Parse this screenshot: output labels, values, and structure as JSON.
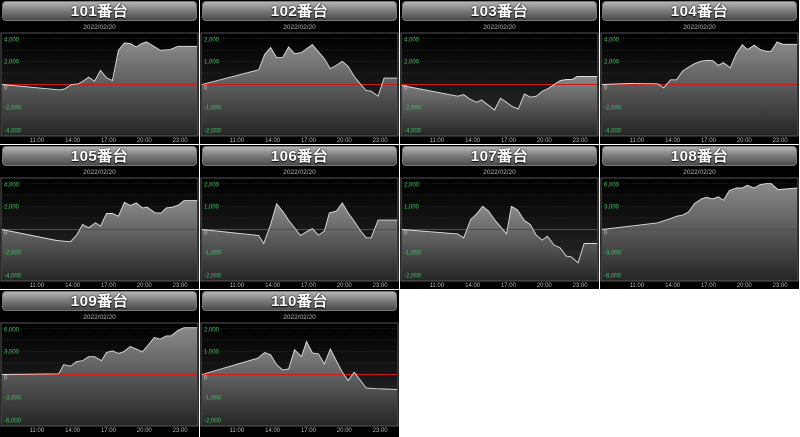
{
  "colors": {
    "zero_line": "#cc1a1a",
    "series_line": "#dddddd",
    "fill_top": "#8a8a8a",
    "fill_bottom": "#262626",
    "y_labels": "#46c46a",
    "background": "#000000"
  },
  "x_ticks": [
    "11:00",
    "14:00",
    "17:00",
    "20:00",
    "23:00"
  ],
  "chart_data": [
    {
      "type": "area",
      "title": "101番台",
      "subtitle": "2022/02/20",
      "xlim": [
        "08:05",
        "24:25"
      ],
      "ylim": [
        -4400,
        4400
      ],
      "y_ticks": [
        4000,
        2000,
        0,
        -2000,
        -4000
      ],
      "y_tick_labels": [
        "4,000",
        "2,000",
        "0",
        "-2,000",
        "-4,000"
      ],
      "grid": true,
      "x": [
        "08:05",
        "12:55",
        "13:20",
        "13:55",
        "14:30",
        "14:50",
        "15:20",
        "15:50",
        "16:20",
        "16:50",
        "17:20",
        "17:50",
        "18:20",
        "18:50",
        "19:20",
        "19:45",
        "20:10",
        "20:40",
        "21:20",
        "22:10",
        "22:50",
        "24:25"
      ],
      "values": [
        0,
        -470,
        -380,
        0,
        60,
        260,
        640,
        290,
        1230,
        580,
        350,
        2980,
        3620,
        3560,
        3270,
        3560,
        3710,
        3420,
        2980,
        3040,
        3330,
        3330
      ]
    },
    {
      "type": "area",
      "title": "102番台",
      "subtitle": "2022/02/20",
      "xlim": [
        "08:05",
        "24:25"
      ],
      "ylim": [
        -2200,
        2200
      ],
      "y_ticks": [
        2000,
        1000,
        0,
        -1000,
        -2000
      ],
      "y_tick_labels": [
        "2,000",
        "1,000",
        "0",
        "-1,000",
        "-2,000"
      ],
      "grid": true,
      "x": [
        "08:05",
        "12:50",
        "13:20",
        "13:50",
        "14:20",
        "14:50",
        "15:20",
        "15:50",
        "16:25",
        "16:50",
        "17:20",
        "18:20",
        "18:50",
        "19:20",
        "19:50",
        "20:20",
        "20:50",
        "21:20",
        "21:50",
        "22:15",
        "22:50",
        "23:20",
        "24:25"
      ],
      "values": [
        0,
        640,
        1310,
        1610,
        1170,
        1170,
        1640,
        1340,
        1390,
        1560,
        1740,
        1120,
        690,
        830,
        1010,
        790,
        350,
        30,
        -260,
        -290,
        -510,
        280,
        280
      ]
    },
    {
      "type": "area",
      "title": "103番台",
      "subtitle": "2022/02/20",
      "xlim": [
        "08:05",
        "24:25"
      ],
      "ylim": [
        -4400,
        4400
      ],
      "y_ticks": [
        4000,
        2000,
        0,
        -2000,
        -4000
      ],
      "y_tick_labels": [
        "4,000",
        "2,000",
        "0",
        "-2,000",
        "-4,000"
      ],
      "grid": true,
      "x": [
        "08:05",
        "12:45",
        "13:15",
        "13:45",
        "14:20",
        "14:45",
        "15:15",
        "15:50",
        "16:20",
        "16:50",
        "17:20",
        "17:50",
        "18:20",
        "18:50",
        "19:20",
        "19:50",
        "20:20",
        "20:50",
        "21:20",
        "21:50",
        "22:20",
        "22:45",
        "24:25"
      ],
      "values": [
        -90,
        -1020,
        -880,
        -1260,
        -1550,
        -1340,
        -1750,
        -2220,
        -1200,
        -1550,
        -1930,
        -2130,
        -820,
        -1110,
        -1020,
        -580,
        -350,
        0,
        350,
        440,
        440,
        700,
        700
      ]
    },
    {
      "type": "area",
      "title": "104番台",
      "subtitle": "2022/02/20",
      "xlim": [
        "08:05",
        "24:25"
      ],
      "ylim": [
        -4400,
        4400
      ],
      "y_ticks": [
        4000,
        2000,
        0,
        -2000,
        -4000
      ],
      "y_tick_labels": [
        "4,000",
        "2,000",
        "0",
        "-2,000",
        "-4,000"
      ],
      "grid": true,
      "x": [
        "08:05",
        "10:25",
        "12:45",
        "13:15",
        "13:50",
        "14:20",
        "14:50",
        "15:20",
        "15:50",
        "16:25",
        "16:50",
        "17:20",
        "17:50",
        "18:15",
        "18:50",
        "19:20",
        "19:50",
        "20:15",
        "20:50",
        "21:20",
        "21:50",
        "22:15",
        "22:45",
        "23:15",
        "24:25"
      ],
      "values": [
        0,
        90,
        60,
        -290,
        410,
        410,
        1170,
        1520,
        1810,
        2040,
        2100,
        2100,
        1660,
        1900,
        1460,
        2690,
        3470,
        3040,
        3420,
        3040,
        2890,
        2890,
        3710,
        3500,
        3500
      ]
    },
    {
      "type": "area",
      "title": "105番台",
      "subtitle": "2022/02/20",
      "xlim": [
        "08:05",
        "24:25"
      ],
      "ylim": [
        -4400,
        4400
      ],
      "y_ticks": [
        4000,
        2000,
        0,
        -2000,
        -4000
      ],
      "y_tick_labels": [
        "4,000",
        "2,000",
        "0",
        "-2,000",
        "-4,000"
      ],
      "grid": true,
      "x": [
        "08:05",
        "12:40",
        "13:50",
        "14:20",
        "14:50",
        "15:20",
        "15:55",
        "16:20",
        "16:50",
        "17:20",
        "17:50",
        "18:20",
        "18:50",
        "19:20",
        "19:50",
        "20:15",
        "20:55",
        "21:25",
        "21:50",
        "22:20",
        "22:50",
        "23:20",
        "24:25"
      ],
      "values": [
        0,
        -960,
        -1070,
        -490,
        440,
        150,
        580,
        290,
        1390,
        1390,
        1160,
        2380,
        2090,
        2320,
        1880,
        1940,
        1450,
        1450,
        1880,
        1940,
        2120,
        2520,
        2520
      ]
    },
    {
      "type": "area",
      "title": "106番台",
      "subtitle": "2022/02/20",
      "xlim": [
        "08:05",
        "24:25"
      ],
      "ylim": [
        -2200,
        2200
      ],
      "y_ticks": [
        2000,
        1000,
        0,
        -1000,
        -2000
      ],
      "y_tick_labels": [
        "2,000",
        "1,000",
        "0",
        "-1,000",
        "-2,000"
      ],
      "grid": true,
      "x": [
        "08:05",
        "12:50",
        "13:15",
        "13:50",
        "14:20",
        "14:50",
        "15:20",
        "16:20",
        "16:50",
        "17:20",
        "17:50",
        "18:20",
        "18:45",
        "19:20",
        "19:50",
        "20:20",
        "20:50",
        "21:20",
        "21:50",
        "22:15",
        "22:50",
        "24:25"
      ],
      "values": [
        0,
        -260,
        -610,
        220,
        1120,
        800,
        410,
        -260,
        -100,
        40,
        -250,
        -70,
        720,
        800,
        1160,
        720,
        360,
        -40,
        -360,
        -360,
        410,
        410
      ]
    },
    {
      "type": "area",
      "title": "107番台",
      "subtitle": "2022/02/20",
      "xlim": [
        "08:05",
        "24:25"
      ],
      "ylim": [
        -2200,
        2200
      ],
      "y_ticks": [
        2000,
        1000,
        0,
        -1000,
        -2000
      ],
      "y_tick_labels": [
        "2,000",
        "1,000",
        "0",
        "-1,000",
        "-2,000"
      ],
      "grid": true,
      "x": [
        "08:05",
        "12:45",
        "13:15",
        "13:50",
        "14:20",
        "14:50",
        "15:20",
        "15:50",
        "16:25",
        "16:50",
        "17:15",
        "17:45",
        "18:20",
        "18:50",
        "19:20",
        "19:50",
        "20:15",
        "20:50",
        "21:20",
        "21:50",
        "22:15",
        "22:50",
        "23:20",
        "24:25"
      ],
      "values": [
        0,
        -190,
        -360,
        430,
        680,
        1010,
        800,
        430,
        70,
        -190,
        1010,
        860,
        390,
        220,
        -250,
        -460,
        -290,
        -680,
        -800,
        -1160,
        -1190,
        -1450,
        -610,
        -610
      ]
    },
    {
      "type": "area",
      "title": "108番台",
      "subtitle": "2022/02/20",
      "xlim": [
        "08:05",
        "24:25"
      ],
      "ylim": [
        -6600,
        6600
      ],
      "y_ticks": [
        6000,
        3000,
        0,
        -3000,
        -6000
      ],
      "y_tick_labels": [
        "6,000",
        "3,000",
        "0",
        "-3,000",
        "-6,000"
      ],
      "grid": true,
      "x": [
        "08:05",
        "12:45",
        "13:50",
        "14:20",
        "14:50",
        "15:20",
        "15:50",
        "16:25",
        "16:50",
        "17:20",
        "17:50",
        "18:15",
        "18:45",
        "19:20",
        "19:50",
        "20:15",
        "20:50",
        "21:20",
        "21:50",
        "22:15",
        "22:50",
        "24:25"
      ],
      "values": [
        0,
        870,
        1430,
        1740,
        1870,
        2300,
        3390,
        4000,
        4220,
        4000,
        4260,
        3830,
        5090,
        5430,
        5430,
        5780,
        5430,
        5870,
        6000,
        6000,
        5220,
        5430
      ]
    },
    {
      "type": "area",
      "title": "109番台",
      "subtitle": "2022/02/20",
      "xlim": [
        "08:05",
        "24:25"
      ],
      "ylim": [
        -6600,
        6600
      ],
      "y_ticks": [
        6000,
        3000,
        0,
        -3000,
        -6000
      ],
      "y_tick_labels": [
        "6,000",
        "3,000",
        "0",
        "-3,000",
        "-6,000"
      ],
      "grid": true,
      "x": [
        "08:05",
        "12:50",
        "13:15",
        "13:50",
        "14:20",
        "14:50",
        "15:20",
        "15:50",
        "16:25",
        "16:50",
        "17:20",
        "17:50",
        "18:15",
        "18:50",
        "19:20",
        "19:50",
        "20:20",
        "20:50",
        "21:20",
        "21:50",
        "22:15",
        "22:50",
        "23:20",
        "24:25"
      ],
      "values": [
        0,
        90,
        1290,
        1080,
        1680,
        1810,
        2330,
        2330,
        1810,
        2890,
        3100,
        2760,
        2970,
        3660,
        3320,
        2970,
        3840,
        4830,
        4610,
        5040,
        5040,
        5780,
        6120,
        6120
      ]
    },
    {
      "type": "area",
      "title": "110番台",
      "subtitle": "2022/02/20",
      "xlim": [
        "08:05",
        "24:25"
      ],
      "ylim": [
        -2200,
        2200
      ],
      "y_ticks": [
        2000,
        1000,
        0,
        -1000,
        -2000
      ],
      "y_tick_labels": [
        "2,000",
        "1,000",
        "0",
        "-1,000",
        "-2,000"
      ],
      "grid": true,
      "x": [
        "08:05",
        "12:45",
        "13:20",
        "13:50",
        "14:20",
        "14:50",
        "15:20",
        "15:50",
        "16:25",
        "16:50",
        "17:20",
        "17:50",
        "18:20",
        "18:50",
        "19:20",
        "19:50",
        "20:20",
        "20:50",
        "21:50",
        "22:40",
        "24:25"
      ],
      "values": [
        0,
        710,
        960,
        860,
        430,
        200,
        240,
        1080,
        780,
        1440,
        940,
        900,
        460,
        1110,
        600,
        100,
        -260,
        100,
        -590,
        -620,
        -650
      ]
    }
  ]
}
